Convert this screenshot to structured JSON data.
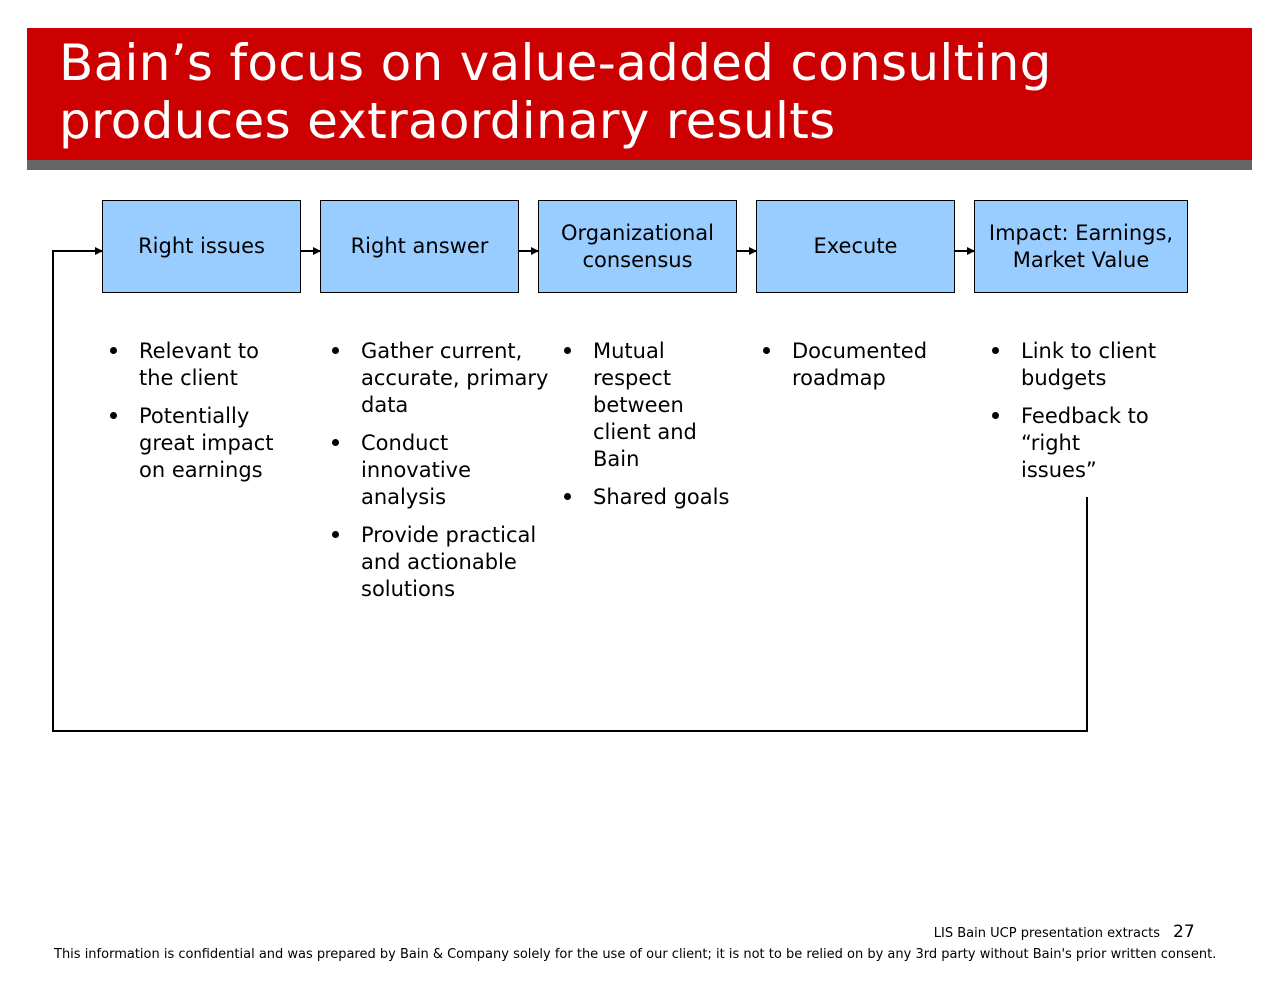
{
  "slide": {
    "title_line1": "Bain’s focus on value-added consulting",
    "title_line2": "produces extraordinary results"
  },
  "colors": {
    "title_bar": "#cc0000",
    "title_underline": "#666666",
    "box_fill": "#99ccff"
  },
  "steps": [
    {
      "label": "Right issues",
      "bullets": [
        "Relevant to the client",
        "Potentially great impact on earnings"
      ]
    },
    {
      "label": "Right answer",
      "bullets": [
        "Gather current, accurate, primary data",
        "Conduct innovative analysis",
        "Provide practical and actionable solutions"
      ]
    },
    {
      "label": "Organizational consensus",
      "bullets": [
        "Mutual respect between client and Bain",
        "Shared goals"
      ]
    },
    {
      "label": "Execute",
      "bullets": [
        "Documented roadmap"
      ]
    },
    {
      "label": "Impact: Earnings, Market Value",
      "bullets": [
        "Link to client budgets",
        "Feedback to “right issues”"
      ]
    }
  ],
  "footer": {
    "source": "LIS   Bain UCP presentation extracts",
    "page_number": "27",
    "disclaimer": "This information is confidential and was prepared by Bain & Company solely for the use of our client; it is not to be relied on by any 3rd party without Bain's prior written consent."
  }
}
